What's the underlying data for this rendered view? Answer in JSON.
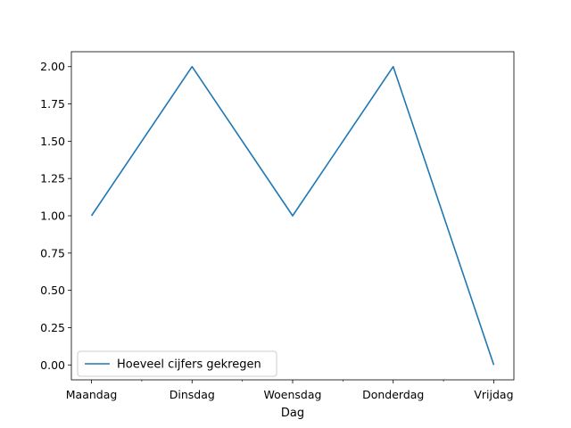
{
  "chart_data": {
    "type": "line",
    "title": "",
    "xlabel": "Dag",
    "ylabel": "",
    "categories": [
      "Maandag",
      "Dinsdag",
      "Woensdag",
      "Donderdag",
      "Vrijdag"
    ],
    "series": [
      {
        "name": "Hoeveel cijfers gekregen",
        "values": [
          1,
          2,
          1,
          2,
          0
        ],
        "color": "#1f77b4"
      }
    ],
    "ylim": [
      -0.1,
      2.1
    ],
    "yticks": [
      "0.00",
      "0.25",
      "0.50",
      "0.75",
      "1.00",
      "1.25",
      "1.50",
      "1.75",
      "2.00"
    ],
    "grid": false,
    "legend_position": "lower-left"
  }
}
